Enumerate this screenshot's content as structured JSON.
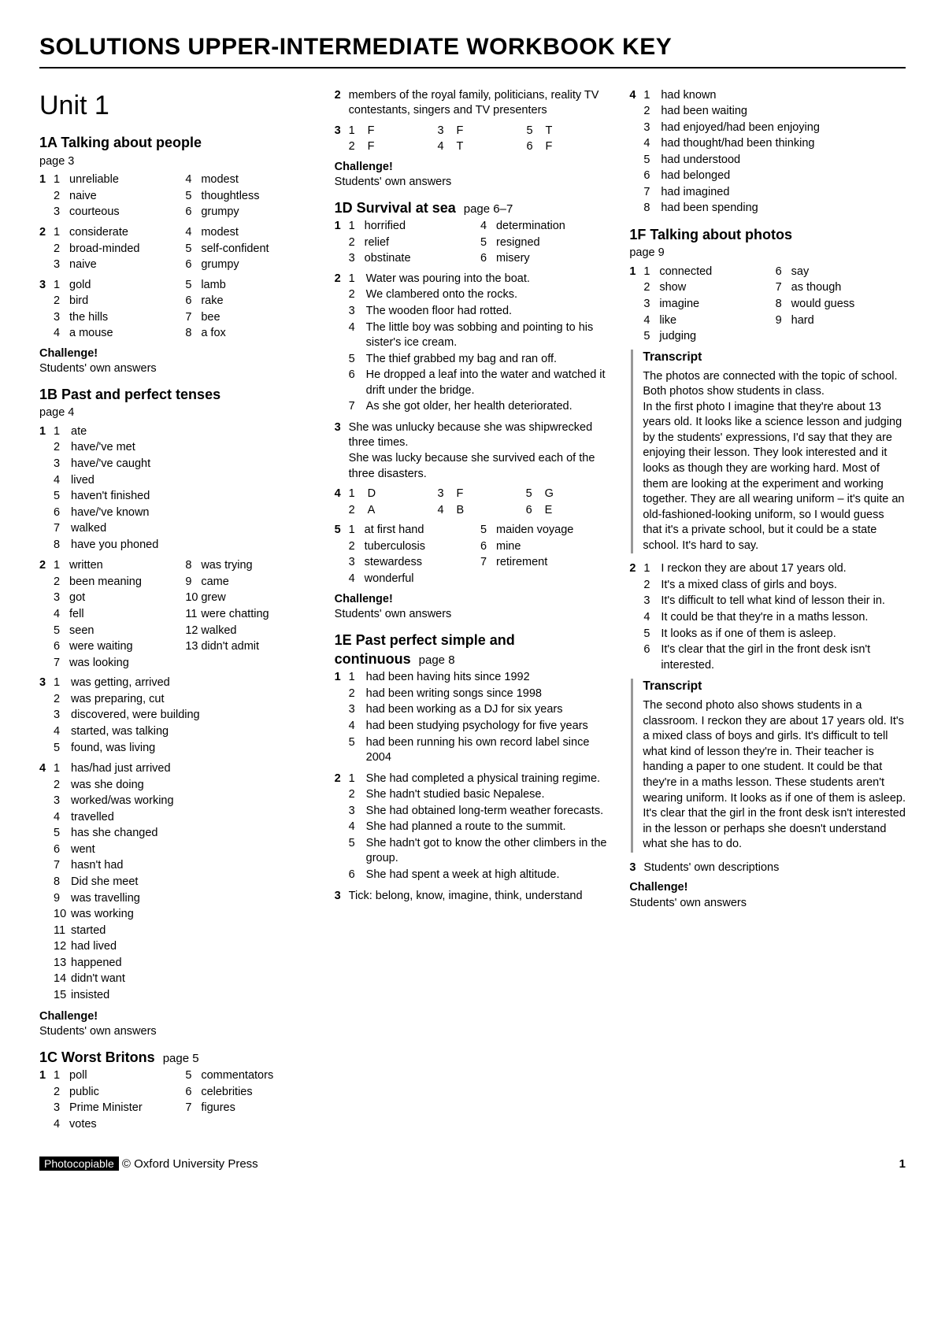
{
  "mainTitle": "SOLUTIONS UPPER-INTERMEDIATE WORKBOOK KEY",
  "unitTitle": "Unit 1",
  "footer": {
    "photocopy": "Photocopiable",
    "copyright": "© Oxford University Press",
    "pageNum": "1"
  },
  "challengeLabel": "Challenge!",
  "challengeAnswer": "Students' own answers",
  "s1A": {
    "title": "1A Talking about people",
    "page": "page 3",
    "ex1": [
      [
        "1",
        "unreliable",
        "4",
        "modest"
      ],
      [
        "2",
        "naive",
        "5",
        "thoughtless"
      ],
      [
        "3",
        "courteous",
        "6",
        "grumpy"
      ]
    ],
    "ex2": [
      [
        "1",
        "considerate",
        "4",
        "modest"
      ],
      [
        "2",
        "broad-minded",
        "5",
        "self-confident"
      ],
      [
        "3",
        "naive",
        "6",
        "grumpy"
      ]
    ],
    "ex3": [
      [
        "1",
        "gold",
        "5",
        "lamb"
      ],
      [
        "2",
        "bird",
        "6",
        "rake"
      ],
      [
        "3",
        "the hills",
        "7",
        "bee"
      ],
      [
        "4",
        "a mouse",
        "8",
        "a fox"
      ]
    ]
  },
  "s1B": {
    "title": "1B Past and perfect tenses",
    "page": "page 4",
    "ex1": [
      [
        "1",
        "ate"
      ],
      [
        "2",
        "have/'ve met"
      ],
      [
        "3",
        "have/'ve caught"
      ],
      [
        "4",
        "lived"
      ],
      [
        "5",
        "haven't finished"
      ],
      [
        "6",
        "have/'ve known"
      ],
      [
        "7",
        "walked"
      ],
      [
        "8",
        "have you phoned"
      ]
    ],
    "ex2": [
      [
        "1",
        "written",
        "8",
        "was trying"
      ],
      [
        "2",
        "been meaning",
        "9",
        "came"
      ],
      [
        "3",
        "got",
        "10",
        "grew"
      ],
      [
        "4",
        "fell",
        "11",
        "were chatting"
      ],
      [
        "5",
        "seen",
        "12",
        "walked"
      ],
      [
        "6",
        "were waiting",
        "13",
        "didn't admit"
      ],
      [
        "7",
        "was looking",
        "",
        ""
      ]
    ],
    "ex3": [
      [
        "1",
        "was getting, arrived"
      ],
      [
        "2",
        "was preparing, cut"
      ],
      [
        "3",
        "discovered, were building"
      ],
      [
        "4",
        "started, was talking"
      ],
      [
        "5",
        "found, was living"
      ]
    ],
    "ex4": [
      [
        "1",
        "has/had just arrived"
      ],
      [
        "2",
        "was she doing"
      ],
      [
        "3",
        "worked/was working"
      ],
      [
        "4",
        "travelled"
      ],
      [
        "5",
        "has she changed"
      ],
      [
        "6",
        "went"
      ],
      [
        "7",
        "hasn't had"
      ],
      [
        "8",
        "Did she meet"
      ],
      [
        "9",
        "was travelling"
      ],
      [
        "10",
        "was working"
      ],
      [
        "11",
        "started"
      ],
      [
        "12",
        "had lived"
      ],
      [
        "13",
        "happened"
      ],
      [
        "14",
        "didn't want"
      ],
      [
        "15",
        "insisted"
      ]
    ]
  },
  "s1C": {
    "title": "1C Worst Britons",
    "page": "page 5",
    "ex1": [
      [
        "1",
        "poll",
        "5",
        "commentators"
      ],
      [
        "2",
        "public",
        "6",
        "celebrities"
      ],
      [
        "3",
        "Prime Minister",
        "7",
        "figures"
      ],
      [
        "4",
        "votes",
        "",
        ""
      ]
    ],
    "ex2": "members of the royal family, politicians, reality TV contestants, singers and TV presenters",
    "ex3": [
      [
        "1",
        "F",
        "3",
        "F",
        "5",
        "T"
      ],
      [
        "2",
        "F",
        "4",
        "T",
        "6",
        "F"
      ]
    ]
  },
  "s1D": {
    "title": "1D Survival at sea",
    "page": "page 6–7",
    "ex1": [
      [
        "1",
        "horrified",
        "4",
        "determination"
      ],
      [
        "2",
        "relief",
        "5",
        "resigned"
      ],
      [
        "3",
        "obstinate",
        "6",
        "misery"
      ]
    ],
    "ex2": [
      [
        "1",
        "Water was pouring into the boat."
      ],
      [
        "2",
        "We clambered onto the rocks."
      ],
      [
        "3",
        "The wooden floor had rotted."
      ],
      [
        "4",
        "The little boy was sobbing and pointing to his sister's ice cream."
      ],
      [
        "5",
        "The thief grabbed my bag and ran off."
      ],
      [
        "6",
        "He dropped a leaf into the water and watched it drift under the bridge."
      ],
      [
        "7",
        "As she got older, her health deteriorated."
      ]
    ],
    "ex3": "She was unlucky because she was shipwrecked three times.\nShe was lucky because she survived each of the three disasters.",
    "ex4": [
      [
        "1",
        "D",
        "3",
        "F",
        "5",
        "G"
      ],
      [
        "2",
        "A",
        "4",
        "B",
        "6",
        "E"
      ]
    ],
    "ex5": [
      [
        "1",
        "at first hand",
        "5",
        "maiden voyage"
      ],
      [
        "2",
        "tuberculosis",
        "6",
        "mine"
      ],
      [
        "3",
        "stewardess",
        "7",
        "retirement"
      ],
      [
        "4",
        "wonderful",
        "",
        ""
      ]
    ]
  },
  "s1E": {
    "title": "1E Past perfect simple and continuous",
    "page": "page 8",
    "ex1": [
      [
        "1",
        "had been having hits since 1992"
      ],
      [
        "2",
        "had been writing songs since 1998"
      ],
      [
        "3",
        "had been working as a DJ for six years"
      ],
      [
        "4",
        "had been studying psychology for five years"
      ],
      [
        "5",
        "had been running his own record label since 2004"
      ]
    ],
    "ex2": [
      [
        "1",
        "She had completed a physical training regime."
      ],
      [
        "2",
        "She hadn't studied basic Nepalese."
      ],
      [
        "3",
        "She had obtained long-term weather forecasts."
      ],
      [
        "4",
        "She had planned a route to the summit."
      ],
      [
        "5",
        "She hadn't got to know the other climbers in the group."
      ],
      [
        "6",
        "She had spent a week at high altitude."
      ]
    ],
    "ex3": "Tick: belong, know, imagine, think, understand",
    "ex4": [
      [
        "1",
        "had known"
      ],
      [
        "2",
        "had been waiting"
      ],
      [
        "3",
        "had enjoyed/had been enjoying"
      ],
      [
        "4",
        "had thought/had been thinking"
      ],
      [
        "5",
        "had understood"
      ],
      [
        "6",
        "had belonged"
      ],
      [
        "7",
        "had imagined"
      ],
      [
        "8",
        "had been spending"
      ]
    ]
  },
  "s1F": {
    "title": "1F Talking about photos",
    "page": "page 9",
    "ex1": [
      [
        "1",
        "connected",
        "6",
        "say"
      ],
      [
        "2",
        "show",
        "7",
        "as though"
      ],
      [
        "3",
        "imagine",
        "8",
        "would guess"
      ],
      [
        "4",
        "like",
        "9",
        "hard"
      ],
      [
        "5",
        "judging",
        "",
        ""
      ]
    ],
    "transcriptLabel": "Transcript",
    "t1": "The photos are connected with the topic of school. Both photos show students in class.\nIn the first photo I imagine that they're about 13 years old. It looks like a science lesson and judging by the students' expressions, I'd say that they are enjoying their lesson. They look interested and it looks as though they are working hard. Most of them are looking at the experiment and working together. They are all wearing uniform – it's quite an old-fashioned-looking uniform, so I would guess that it's a private school, but it could be a state school. It's hard to say.",
    "ex2": [
      [
        "1",
        "I reckon they are about 17 years old."
      ],
      [
        "2",
        "It's a mixed class of girls and boys."
      ],
      [
        "3",
        "It's difficult to tell what kind of lesson their in."
      ],
      [
        "4",
        "It could be that they're in a maths lesson."
      ],
      [
        "5",
        "It looks as if one of them is asleep."
      ],
      [
        "6",
        "It's clear that the girl in the front desk isn't interested."
      ]
    ],
    "t2": "The second photo also shows students in a classroom. I reckon they are about 17 years old. It's a mixed class of boys and girls. It's difficult to tell what kind of lesson they're in. Their teacher is handing a paper to one student. It could be that they're in a maths lesson. These students aren't wearing uniform. It looks as if one of them is asleep. It's clear that the girl in the front desk isn't interested in the lesson or perhaps she doesn't understand what she has to do.",
    "ex3": "Students' own descriptions"
  }
}
